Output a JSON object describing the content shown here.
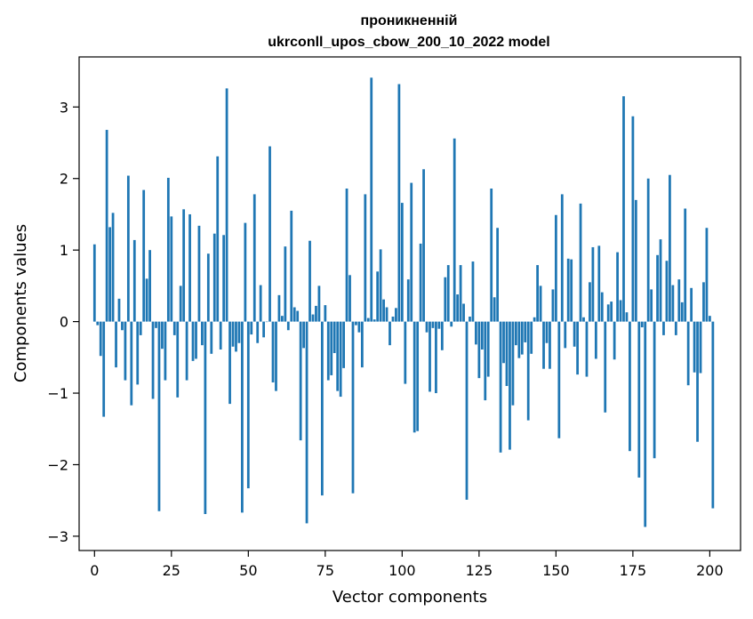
{
  "chart_data": {
    "type": "bar",
    "title": "проникненній",
    "subtitle": "ukrconll_upos_cbow_200_10_2022 model",
    "xlabel": "Vector components",
    "ylabel": "Components values",
    "xlim": [
      -5,
      210
    ],
    "ylim": [
      -3.2,
      3.7
    ],
    "xticks": [
      0,
      25,
      50,
      75,
      100,
      125,
      150,
      175,
      200
    ],
    "yticks": [
      -3,
      -2,
      -1,
      0,
      1,
      2,
      3
    ],
    "ytick_labels": [
      "−3",
      "−2",
      "−1",
      "0",
      "1",
      "2",
      "3"
    ],
    "grid": false,
    "legend": "none",
    "bar_color": "#1f77b4",
    "series": [
      {
        "values": [
          1.08,
          -0.05,
          -0.48,
          -1.33,
          2.68,
          1.32,
          1.52,
          -0.64,
          0.32,
          -0.12,
          -0.82,
          2.04,
          -1.17,
          1.14,
          -0.88,
          -0.19,
          1.84,
          0.6,
          1.0,
          -1.08,
          -0.09,
          -2.65,
          -0.38,
          -0.82,
          2.01,
          1.47,
          -0.19,
          -1.06,
          0.5,
          1.57,
          -0.82,
          1.5,
          -0.55,
          -0.52,
          1.34,
          -0.33,
          -2.69,
          0.95,
          -0.45,
          1.23,
          2.31,
          -0.39,
          1.21,
          3.26,
          -1.15,
          -0.35,
          -0.42,
          -0.3,
          -2.67,
          1.38,
          -2.33,
          -0.18,
          1.78,
          -0.3,
          0.51,
          -0.22,
          0.0,
          2.45,
          -0.85,
          -0.97,
          0.37,
          0.08,
          1.05,
          -0.12,
          1.55,
          0.2,
          0.15,
          -1.66,
          -0.37,
          -2.82,
          1.13,
          0.1,
          0.22,
          0.5,
          -2.43,
          0.23,
          -0.82,
          -0.75,
          -0.44,
          -0.97,
          -1.05,
          -0.65,
          1.86,
          0.65,
          -2.4,
          -0.05,
          -0.15,
          -0.64,
          1.78,
          0.05,
          3.41,
          0.03,
          0.7,
          1.01,
          0.31,
          0.2,
          -0.33,
          0.07,
          0.19,
          3.32,
          1.66,
          -0.87,
          0.59,
          1.94,
          -1.55,
          -1.53,
          1.09,
          2.13,
          -0.15,
          -0.98,
          -0.09,
          -1.0,
          -0.1,
          -0.4,
          0.62,
          0.79,
          -0.07,
          2.56,
          0.38,
          0.79,
          0.25,
          -2.49,
          0.07,
          0.84,
          -0.32,
          -0.79,
          -0.39,
          -1.1,
          -0.77,
          1.86,
          0.34,
          1.31,
          -1.83,
          -0.58,
          -0.9,
          -1.79,
          -1.17,
          -0.33,
          -0.51,
          -0.46,
          -0.29,
          -1.38,
          -0.45,
          0.06,
          0.79,
          0.5,
          -0.66,
          -0.3,
          -0.66,
          0.45,
          1.49,
          -1.63,
          1.78,
          -0.37,
          0.88,
          0.87,
          -0.35,
          -0.74,
          1.65,
          0.06,
          -0.77,
          0.55,
          1.04,
          -0.52,
          1.06,
          0.41,
          -1.27,
          0.24,
          0.28,
          -0.53,
          0.97,
          0.3,
          3.15,
          0.13,
          -1.81,
          2.87,
          1.7,
          -2.18,
          -0.08,
          -2.87,
          2.0,
          0.45,
          -1.91,
          0.93,
          1.15,
          -0.19,
          0.85,
          2.05,
          0.51,
          -0.19,
          0.59,
          0.27,
          1.58,
          -0.89,
          0.47,
          -0.71,
          -1.68,
          -0.72,
          0.55,
          1.31,
          0.08,
          -2.61
        ]
      }
    ]
  }
}
